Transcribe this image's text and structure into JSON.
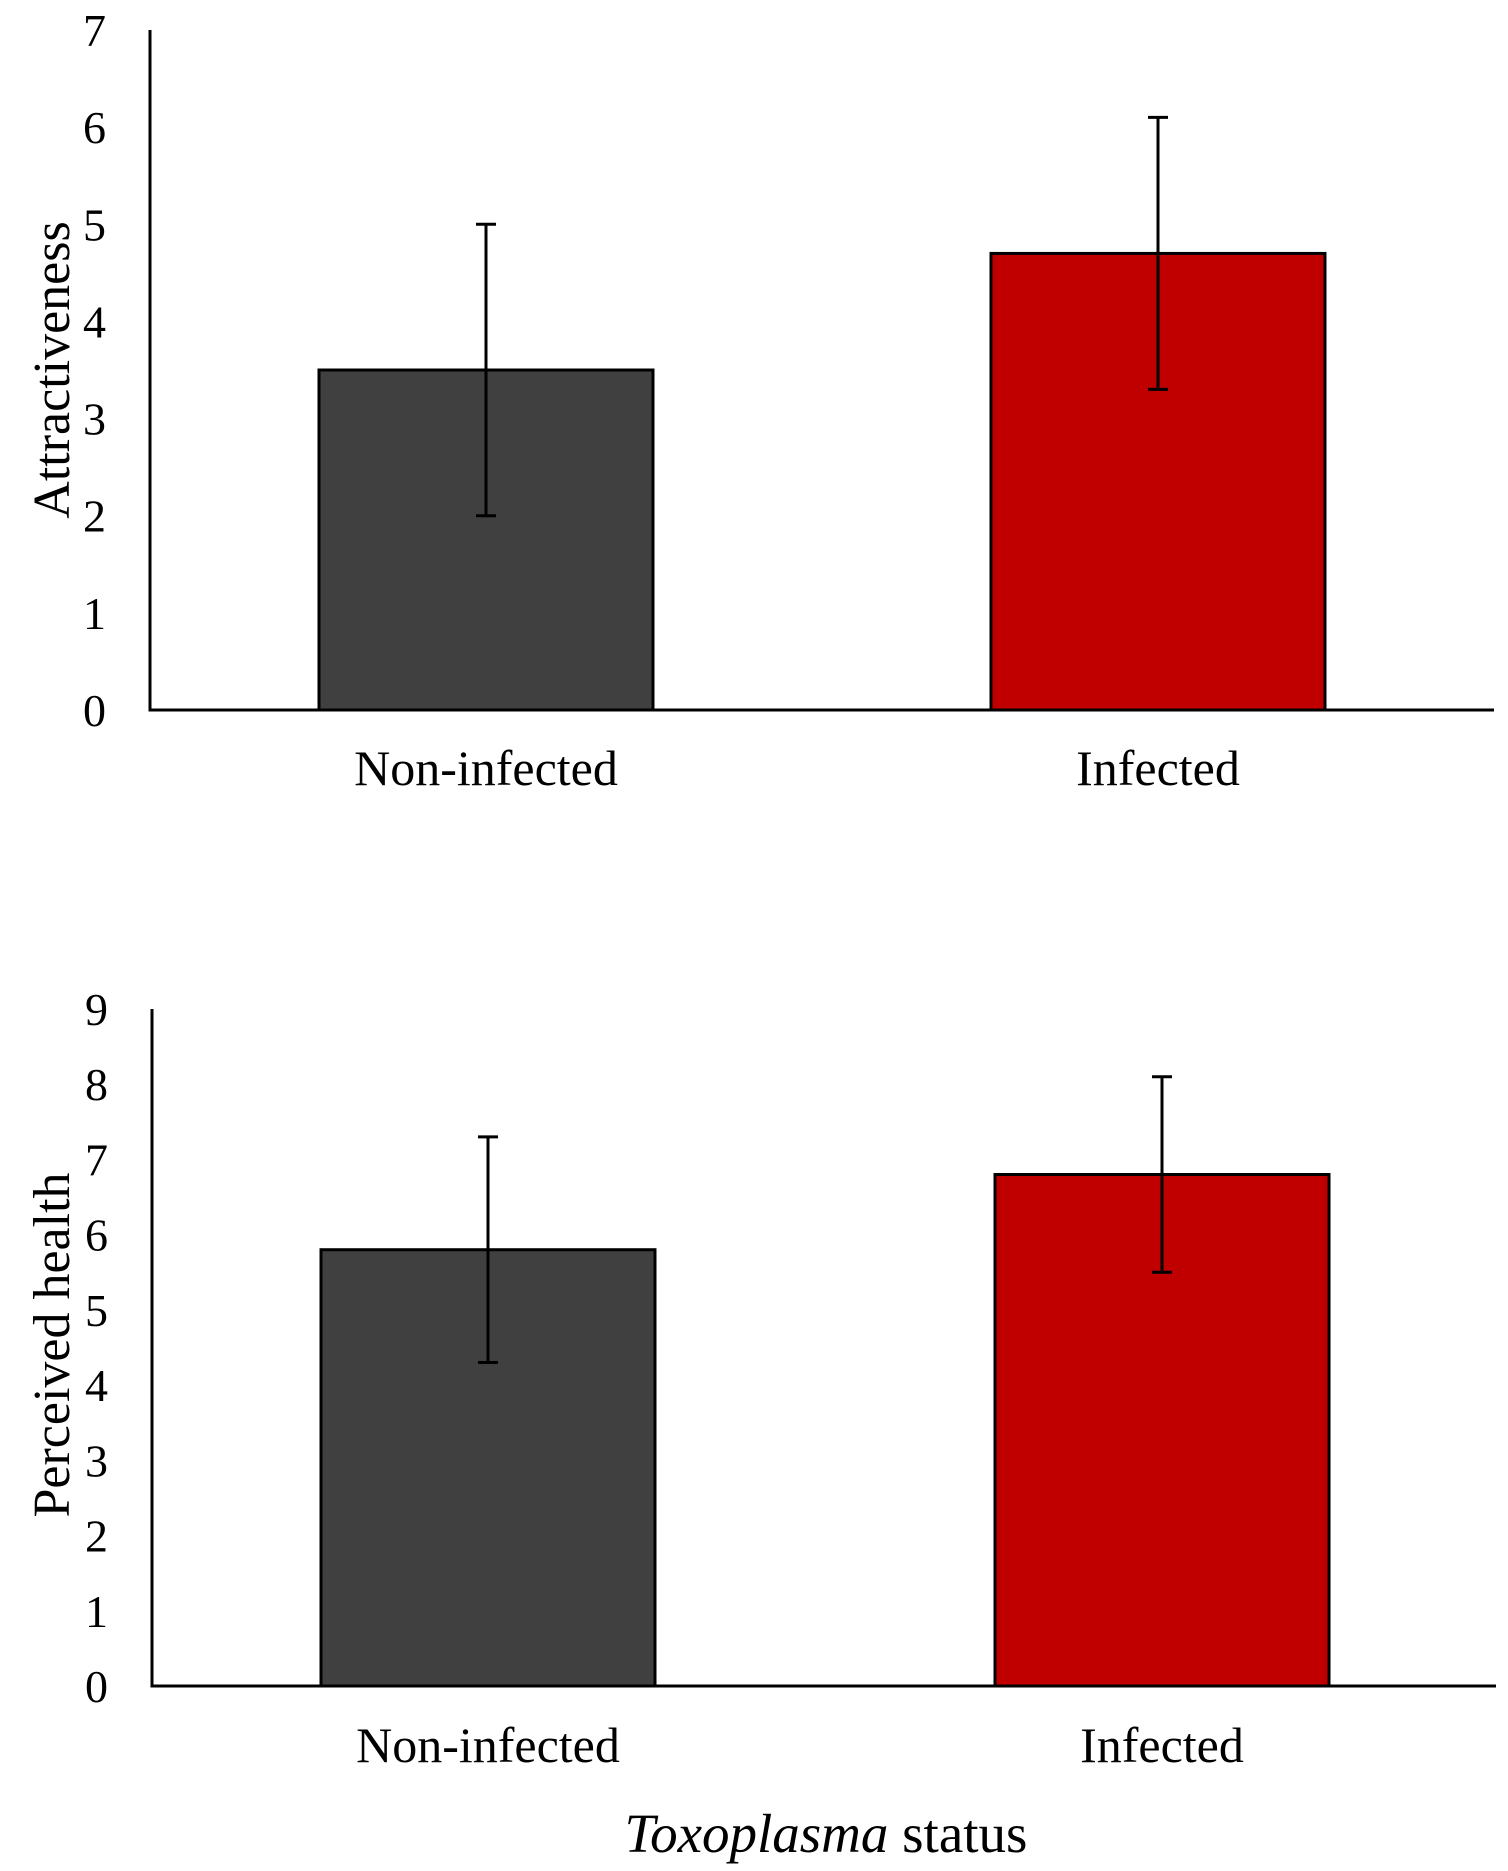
{
  "footer": {
    "xlabel_italic": "Toxoplasma",
    "xlabel_rest": " status"
  },
  "chart_data": [
    {
      "type": "bar",
      "title": "",
      "xlabel": "",
      "ylabel": "Attractiveness",
      "ylim": [
        0,
        7
      ],
      "yticks": [
        "0",
        "1",
        "2",
        "3",
        "4",
        "5",
        "6",
        "7"
      ],
      "grid": false,
      "categories": [
        "Non-infected",
        "Infected"
      ],
      "values": [
        3.5,
        4.7
      ],
      "error": [
        1.5,
        1.4
      ],
      "colors": [
        "#404040",
        "#c00000"
      ]
    },
    {
      "type": "bar",
      "title": "",
      "xlabel": "Toxoplasma status",
      "ylabel": "Perceived health",
      "ylim": [
        0,
        9
      ],
      "yticks": [
        "0",
        "1",
        "2",
        "3",
        "4",
        "5",
        "6",
        "7",
        "8",
        "9"
      ],
      "grid": false,
      "categories": [
        "Non-infected",
        "Infected"
      ],
      "values": [
        5.8,
        6.8
      ],
      "error": [
        1.5,
        1.3
      ],
      "colors": [
        "#404040",
        "#c00000"
      ]
    }
  ]
}
